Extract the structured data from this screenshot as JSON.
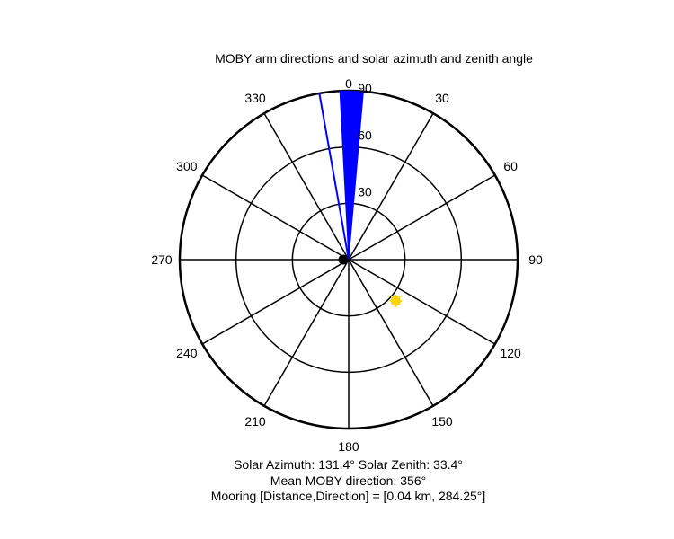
{
  "chart_data": {
    "type": "polar",
    "title": "MOBY arm directions and solar azimuth and zenith angle",
    "angle_ticks": [
      0,
      30,
      60,
      90,
      120,
      150,
      180,
      210,
      240,
      270,
      300,
      330
    ],
    "angle_tick_labels": [
      "0",
      "30",
      "60",
      "90",
      "120",
      "150",
      "180",
      "210",
      "240",
      "270",
      "300",
      "330"
    ],
    "radial_ticks": [
      30,
      60,
      90
    ],
    "radial_tick_labels": [
      "30",
      "60",
      "90"
    ],
    "rmax": 90,
    "angle_zero": "top",
    "angle_direction": "clockwise",
    "arm_directions": {
      "color": "#0000ff",
      "fan_from_deg": 357,
      "fan_to_deg": 5,
      "fan_radius": 90,
      "outlier_deg": 350,
      "outlier_radius": 90
    },
    "sun": {
      "azimuth": 131.4,
      "zenith": 33.4,
      "color": "#ffd700"
    },
    "center_marker_color": "#000000",
    "captions": [
      "Solar Azimuth: 131.4°    Solar Zenith: 33.4°",
      "Mean MOBY direction: 356°",
      "Mooring [Distance,Direction] = [0.04 km, 284.25°]"
    ]
  }
}
